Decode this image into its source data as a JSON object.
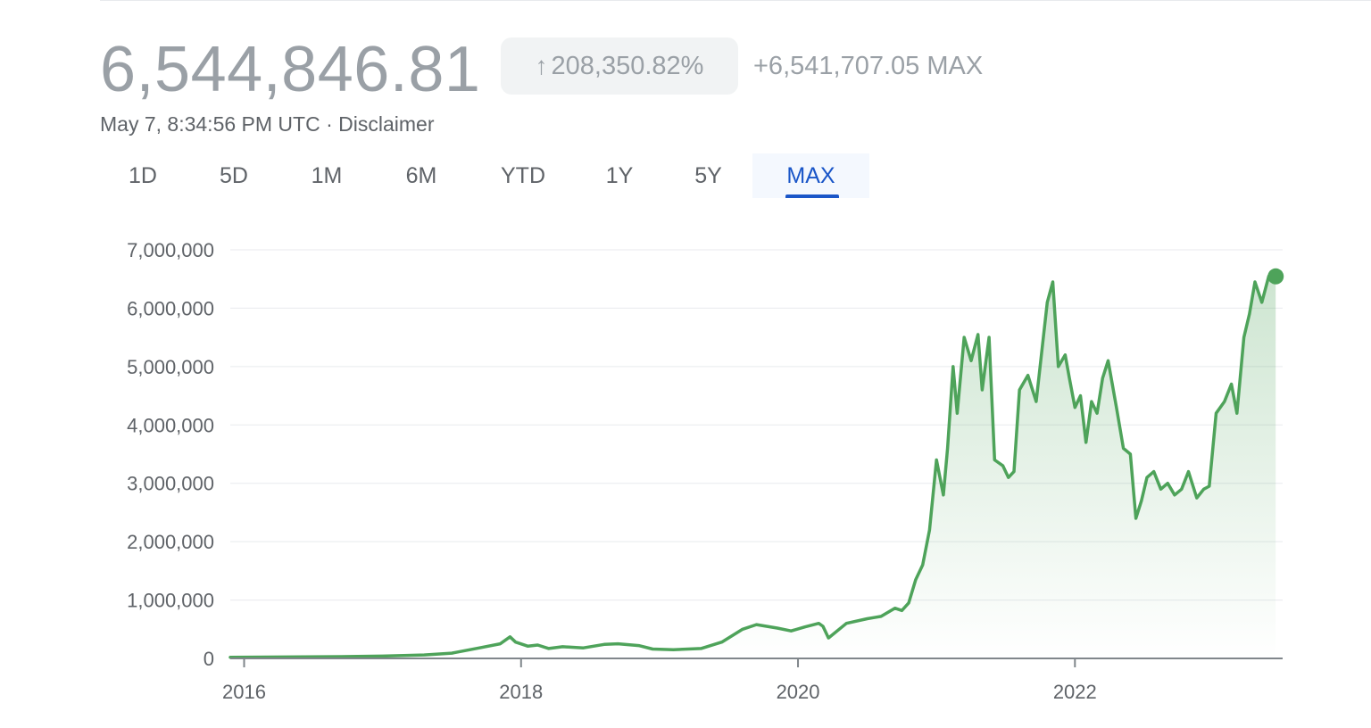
{
  "header": {
    "price": "6,544,846.81",
    "change_percent": "208,350.82%",
    "change_arrow_icon": "arrow-up-icon",
    "change_absolute": "+6,541,707.05 MAX",
    "timestamp": "May 7, 8:34:56 PM UTC · Disclaimer"
  },
  "tabs": [
    {
      "label": "1D",
      "active": false
    },
    {
      "label": "5D",
      "active": false
    },
    {
      "label": "1M",
      "active": false
    },
    {
      "label": "6M",
      "active": false
    },
    {
      "label": "YTD",
      "active": false
    },
    {
      "label": "1Y",
      "active": false
    },
    {
      "label": "5Y",
      "active": false
    },
    {
      "label": "MAX",
      "active": true
    }
  ],
  "colors": {
    "line": "#4ea35a",
    "fill": "#4ea35a",
    "grid": "#e8eaed",
    "axis": "#5f6368",
    "active_tab": "#1a56c8"
  },
  "chart_data": {
    "type": "area",
    "title": "",
    "xlabel": "",
    "ylabel": "",
    "grid": true,
    "x_ticks": [
      2016,
      2018,
      2020,
      2022
    ],
    "y_ticks": [
      0,
      1000000,
      2000000,
      3000000,
      4000000,
      5000000,
      6000000,
      7000000
    ],
    "y_tick_labels": [
      "0",
      "1,000,000",
      "2,000,000",
      "3,000,000",
      "4,000,000",
      "5,000,000",
      "6,000,000",
      "7,000,000"
    ],
    "x_tick_labels": [
      "2016",
      "2018",
      "2020",
      "2022"
    ],
    "xlim": [
      2015.9,
      2023.5
    ],
    "ylim": [
      0,
      7000000
    ],
    "series": [
      {
        "x": [
          2015.9,
          2016.3,
          2016.7,
          2017.0,
          2017.3,
          2017.5,
          2017.7,
          2017.85,
          2017.92,
          2017.96,
          2018.05,
          2018.12,
          2018.2,
          2018.3,
          2018.45,
          2018.6,
          2018.7,
          2018.85,
          2018.95,
          2019.1,
          2019.3,
          2019.45,
          2019.6,
          2019.7,
          2019.85,
          2019.95,
          2020.05,
          2020.15,
          2020.18,
          2020.22,
          2020.35,
          2020.5,
          2020.55,
          2020.6,
          2020.7,
          2020.75,
          2020.8,
          2020.85,
          2020.9,
          2020.95,
          2021.0,
          2021.05,
          2021.08,
          2021.12,
          2021.15,
          2021.2,
          2021.25,
          2021.3,
          2021.33,
          2021.38,
          2021.42,
          2021.48,
          2021.52,
          2021.56,
          2021.6,
          2021.66,
          2021.72,
          2021.8,
          2021.84,
          2021.88,
          2021.93,
          2021.96,
          2022.0,
          2022.04,
          2022.08,
          2022.12,
          2022.16,
          2022.2,
          2022.24,
          2022.3,
          2022.35,
          2022.4,
          2022.44,
          2022.48,
          2022.52,
          2022.57,
          2022.62,
          2022.67,
          2022.72,
          2022.77,
          2022.82,
          2022.88,
          2022.93,
          2022.97,
          2023.02,
          2023.08,
          2023.13,
          2023.17,
          2023.22,
          2023.26,
          2023.3,
          2023.35,
          2023.4,
          2023.45
        ],
        "values": [
          20000,
          25000,
          30000,
          40000,
          60000,
          90000,
          180000,
          250000,
          370000,
          280000,
          210000,
          230000,
          170000,
          200000,
          180000,
          240000,
          250000,
          220000,
          160000,
          150000,
          170000,
          280000,
          500000,
          580000,
          520000,
          470000,
          540000,
          600000,
          550000,
          350000,
          600000,
          680000,
          700000,
          720000,
          860000,
          820000,
          950000,
          1350000,
          1600000,
          2200000,
          3400000,
          2800000,
          3600000,
          5000000,
          4200000,
          5500000,
          5100000,
          5550000,
          4600000,
          5500000,
          3400000,
          3300000,
          3100000,
          3200000,
          4600000,
          4850000,
          4400000,
          6100000,
          6450000,
          5000000,
          5200000,
          4800000,
          4300000,
          4500000,
          3700000,
          4400000,
          4200000,
          4800000,
          5100000,
          4300000,
          3600000,
          3500000,
          2400000,
          2700000,
          3100000,
          3200000,
          2900000,
          3000000,
          2800000,
          2900000,
          3200000,
          2750000,
          2900000,
          2950000,
          4200000,
          4400000,
          4700000,
          4200000,
          5500000,
          5900000,
          6450000,
          6100000,
          6550000,
          6544847
        ]
      }
    ]
  }
}
